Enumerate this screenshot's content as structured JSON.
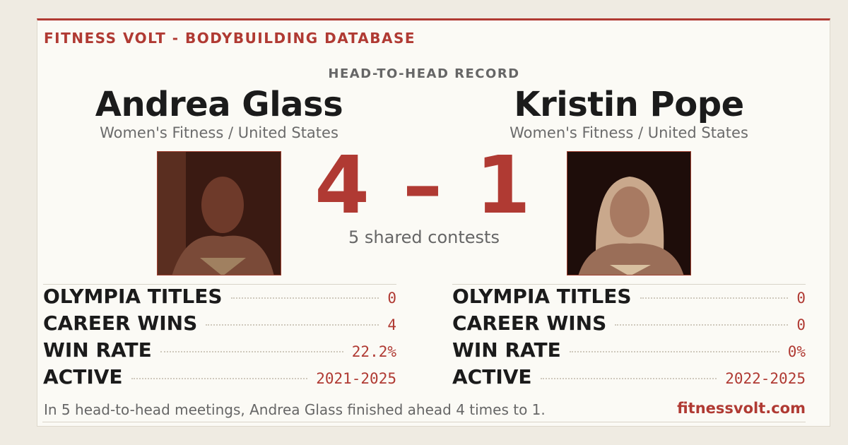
{
  "header": {
    "brand": "FITNESS VOLT - BODYBUILDING DATABASE"
  },
  "record": {
    "label": "HEAD-TO-HEAD RECORD",
    "score": "4 – 1",
    "shared": "5 shared contests"
  },
  "athletes": [
    {
      "name": "Andrea Glass",
      "division": "Women's Fitness / United States",
      "stats": [
        {
          "label": "OLYMPIA TITLES",
          "value": "0"
        },
        {
          "label": "CAREER WINS",
          "value": "4"
        },
        {
          "label": "WIN RATE",
          "value": "22.2%"
        },
        {
          "label": "ACTIVE",
          "value": "2021-2025"
        }
      ]
    },
    {
      "name": "Kristin Pope",
      "division": "Women's Fitness / United States",
      "stats": [
        {
          "label": "OLYMPIA TITLES",
          "value": "0"
        },
        {
          "label": "CAREER WINS",
          "value": "0"
        },
        {
          "label": "WIN RATE",
          "value": "0%"
        },
        {
          "label": "ACTIVE",
          "value": "2022-2025"
        }
      ]
    }
  ],
  "footer": {
    "summary": "In 5 head-to-head meetings, Andrea Glass finished ahead 4 times to 1.",
    "site": "fitnessvolt.com"
  }
}
